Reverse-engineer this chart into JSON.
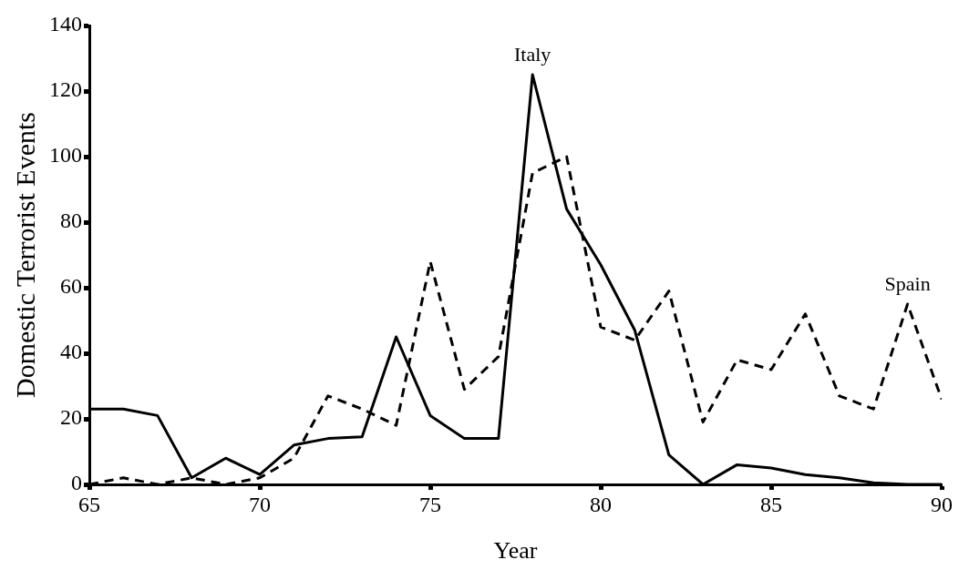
{
  "chart_data": {
    "type": "line",
    "xlabel": "Year",
    "ylabel": "Domestic Terrorist Events",
    "x": [
      65,
      66,
      67,
      68,
      69,
      70,
      71,
      72,
      73,
      74,
      75,
      76,
      77,
      78,
      79,
      80,
      81,
      82,
      83,
      84,
      85,
      86,
      87,
      88,
      89,
      90
    ],
    "series": [
      {
        "name": "Italy",
        "color": "#000000",
        "line_style": "solid",
        "values": [
          23,
          23,
          21,
          2,
          8,
          3,
          12,
          14,
          14.5,
          45,
          21,
          14,
          14,
          125,
          84,
          67,
          47,
          9,
          0,
          6,
          5,
          3,
          2,
          0.5,
          0,
          0
        ]
      },
      {
        "name": "Spain",
        "color": "#000000",
        "line_style": "dashed",
        "values": [
          0,
          2,
          0,
          2,
          0,
          2,
          8,
          27,
          23,
          18,
          68,
          29,
          39,
          95,
          100,
          48,
          44,
          59,
          19,
          38,
          35,
          52,
          27,
          23,
          55,
          26
        ]
      }
    ],
    "xlim": [
      65,
      90
    ],
    "xticks": [
      65,
      70,
      75,
      80,
      85,
      90
    ],
    "ylim": [
      0,
      140
    ],
    "yticks": [
      0,
      20,
      40,
      60,
      80,
      100,
      120,
      140
    ],
    "grid": false,
    "legend": false,
    "marker": "none"
  }
}
